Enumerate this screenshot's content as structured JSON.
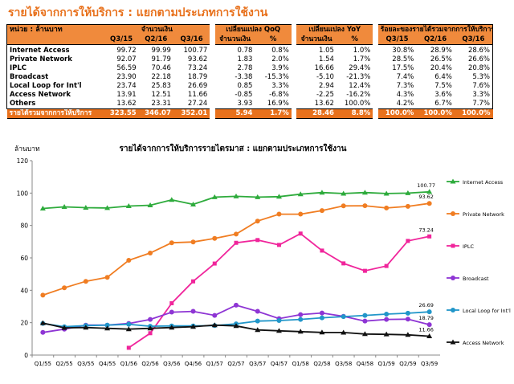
{
  "page_title": "รายได้จากการให้บริการ : แยกตามประเภทการใช้งาน",
  "table": {
    "unit_label": "หน่วย : ล้านบาท",
    "group_headers": [
      "จำนวนเงิน",
      "เปลี่ยนแปลง QoQ",
      "เปลี่ยนแปลง YoY",
      "ร้อยละของรายได้รวมจากการให้บริการ"
    ],
    "sub_headers": [
      "Q3/15",
      "Q2/16",
      "Q3/16",
      "จำนวนเงิน",
      "%",
      "จำนวนเงิน",
      "%",
      "Q3/15",
      "Q2/16",
      "Q3/16"
    ],
    "rows": [
      {
        "label": "Internet Access",
        "values": [
          "99.72",
          "99.99",
          "100.77",
          "0.78",
          "0.8%",
          "1.05",
          "1.0%",
          "30.8%",
          "28.9%",
          "28.6%"
        ]
      },
      {
        "label": "Private Network",
        "values": [
          "92.07",
          "91.79",
          "93.62",
          "1.83",
          "2.0%",
          "1.54",
          "1.7%",
          "28.5%",
          "26.5%",
          "26.6%"
        ]
      },
      {
        "label": "IPLC",
        "values": [
          "56.59",
          "70.46",
          "73.24",
          "2.78",
          "3.9%",
          "16.66",
          "29.4%",
          "17.5%",
          "20.4%",
          "20.8%"
        ]
      },
      {
        "label": "Broadcast",
        "values": [
          "23.90",
          "22.18",
          "18.79",
          "-3.38",
          "-15.3%",
          "-5.10",
          "-21.3%",
          "7.4%",
          "6.4%",
          "5.3%"
        ]
      },
      {
        "label": "Local Loop for Int'l",
        "values": [
          "23.74",
          "25.83",
          "26.69",
          "0.85",
          "3.3%",
          "2.94",
          "12.4%",
          "7.3%",
          "7.5%",
          "7.6%"
        ]
      },
      {
        "label": "Access Network",
        "values": [
          "13.91",
          "12.51",
          "11.66",
          "-0.85",
          "-6.8%",
          "-2.25",
          "-16.2%",
          "4.3%",
          "3.6%",
          "3.3%"
        ]
      },
      {
        "label": "Others",
        "values": [
          "13.62",
          "23.31",
          "27.24",
          "3.93",
          "16.9%",
          "13.62",
          "100.0%",
          "4.2%",
          "6.7%",
          "7.7%"
        ]
      }
    ],
    "total": {
      "label": "รายได้รวมจากการให้บริการ",
      "values": [
        "323.55",
        "346.07",
        "352.01",
        "5.94",
        "1.7%",
        "28.46",
        "8.8%",
        "100.0%",
        "100.0%",
        "100.0%"
      ]
    }
  },
  "chart_data": {
    "type": "line",
    "title": "รายได้จากการให้บริการรายไตรมาส : แยกตามประเภทการใช้งาน",
    "ylabel": "ล้านบาท",
    "xlabel": "",
    "ylim": [
      0,
      120
    ],
    "yticks": [
      0,
      20,
      40,
      60,
      80,
      100,
      120
    ],
    "grid": false,
    "legend_position": "right",
    "categories": [
      "Q1/55",
      "Q2/55",
      "Q3/55",
      "Q4/55",
      "Q1/56",
      "Q2/56",
      "Q3/56",
      "Q4/56",
      "Q1/57",
      "Q2/57",
      "Q3/57",
      "Q4/57",
      "Q1/58",
      "Q2/58",
      "Q3/58",
      "Q4/58",
      "Q1/59",
      "Q2/59",
      "Q3/59"
    ],
    "series": [
      {
        "name": "Internet Access",
        "color": "#2eab3c",
        "marker": "triangle",
        "end_label": "100.77",
        "values": [
          90.5,
          91.5,
          91.0,
          90.8,
          92.0,
          92.5,
          95.8,
          93.0,
          97.5,
          98.0,
          97.5,
          97.8,
          99.3,
          100.3,
          99.7,
          100.3,
          99.7,
          99.99,
          100.77
        ]
      },
      {
        "name": "Private Network",
        "color": "#f07d22",
        "marker": "circle",
        "end_label": "93.62",
        "values": [
          37.0,
          41.5,
          45.5,
          48.0,
          58.5,
          63.0,
          69.3,
          69.8,
          72.0,
          74.7,
          82.7,
          87.0,
          87.0,
          89.2,
          92.1,
          92.2,
          90.8,
          91.79,
          93.62
        ]
      },
      {
        "name": "IPLC",
        "color": "#f0259b",
        "marker": "square",
        "end_label": "73.24",
        "values": [
          null,
          null,
          null,
          null,
          4.5,
          13.5,
          32.0,
          45.5,
          56.5,
          69.3,
          71.0,
          68.0,
          75.0,
          64.5,
          56.59,
          52.0,
          55.0,
          70.46,
          73.24
        ]
      },
      {
        "name": "Broadcast",
        "color": "#8e35d4",
        "marker": "circle",
        "end_label": "18.79",
        "values": [
          14.0,
          16.0,
          18.5,
          18.5,
          19.5,
          22.0,
          26.5,
          27.0,
          24.5,
          30.8,
          27.0,
          22.5,
          25.0,
          26.0,
          23.9,
          21.0,
          22.0,
          22.18,
          18.79
        ]
      },
      {
        "name": "Local Loop for Int'l",
        "color": "#2196c9",
        "marker": "circle",
        "end_label": "26.69",
        "values": [
          19.5,
          17.5,
          18.2,
          18.5,
          19.0,
          17.8,
          18.0,
          18.0,
          18.2,
          19.3,
          21.0,
          21.3,
          22.0,
          23.0,
          23.74,
          24.5,
          25.3,
          25.83,
          26.69
        ]
      },
      {
        "name": "Access Network",
        "color": "#111111",
        "marker": "triangle",
        "end_label": "11.66",
        "values": [
          19.8,
          16.8,
          17.0,
          16.5,
          16.0,
          16.5,
          17.0,
          17.5,
          18.5,
          18.0,
          15.5,
          15.0,
          14.5,
          14.0,
          13.91,
          13.0,
          12.8,
          12.51,
          11.66
        ]
      }
    ]
  }
}
